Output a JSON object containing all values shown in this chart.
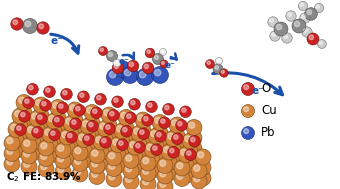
{
  "c2_fe_text": "C$_2$ FE: 83.9%",
  "legend": [
    {
      "label": "O",
      "color": "#CC2222"
    },
    {
      "label": "Cu",
      "color": "#D4843A"
    },
    {
      "label": "Pb",
      "color": "#3355BB"
    }
  ],
  "bg_color": "#FFFFFF",
  "arrow_color": "#1A4FAA",
  "e_label": "e⁻",
  "cu_color": "#D4843A",
  "o_color": "#CC2222",
  "pb_color": "#3355BB",
  "c_color": "#888888",
  "h_color": "#CCCCCC",
  "white_color": "#FFFFFF"
}
